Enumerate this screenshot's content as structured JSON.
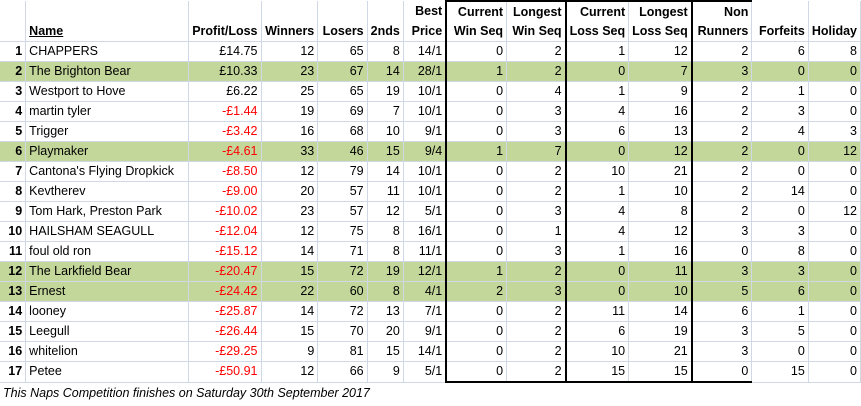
{
  "headers": {
    "row1": [
      "",
      "",
      "",
      "",
      "",
      "",
      "Best",
      "Current",
      "Longest",
      "Current",
      "Longest",
      "Non",
      "",
      ""
    ],
    "row2": [
      "",
      "Name",
      "Profit/Loss",
      "Winners",
      "Losers",
      "2nds",
      "Price",
      "Win Seq",
      "Win Seq",
      "Loss Seq",
      "Loss Seq",
      "Runners",
      "Forfeits",
      "Holiday"
    ]
  },
  "rows": [
    {
      "rank": "1",
      "name": "CHAPPERS",
      "pl": "£14.75",
      "winners": "12",
      "losers": "65",
      "seconds": "8",
      "best": "14/1",
      "cws": "0",
      "lws": "2",
      "cls": "1",
      "lls": "12",
      "nr": "2",
      "forfeits": "6",
      "holiday": "8",
      "highlight": false
    },
    {
      "rank": "2",
      "name": "The Brighton Bear",
      "pl": "£10.33",
      "winners": "23",
      "losers": "67",
      "seconds": "14",
      "best": "28/1",
      "cws": "1",
      "lws": "2",
      "cls": "0",
      "lls": "7",
      "nr": "3",
      "forfeits": "0",
      "holiday": "0",
      "highlight": true
    },
    {
      "rank": "3",
      "name": "Westport to Hove",
      "pl": "£6.22",
      "winners": "25",
      "losers": "65",
      "seconds": "19",
      "best": "10/1",
      "cws": "0",
      "lws": "4",
      "cls": "1",
      "lls": "9",
      "nr": "2",
      "forfeits": "1",
      "holiday": "0",
      "highlight": false
    },
    {
      "rank": "4",
      "name": "martin tyler",
      "pl": "-£1.44",
      "winners": "19",
      "losers": "69",
      "seconds": "7",
      "best": "10/1",
      "cws": "0",
      "lws": "3",
      "cls": "4",
      "lls": "16",
      "nr": "2",
      "forfeits": "3",
      "holiday": "0",
      "highlight": false
    },
    {
      "rank": "5",
      "name": "Trigger",
      "pl": "-£3.42",
      "winners": "16",
      "losers": "68",
      "seconds": "10",
      "best": "9/1",
      "cws": "0",
      "lws": "3",
      "cls": "6",
      "lls": "13",
      "nr": "2",
      "forfeits": "4",
      "holiday": "3",
      "highlight": false
    },
    {
      "rank": "6",
      "name": "Playmaker",
      "pl": "-£4.61",
      "winners": "33",
      "losers": "46",
      "seconds": "15",
      "best": "9/4",
      "cws": "1",
      "lws": "7",
      "cls": "0",
      "lls": "12",
      "nr": "2",
      "forfeits": "0",
      "holiday": "12",
      "highlight": true
    },
    {
      "rank": "7",
      "name": "Cantona's Flying Dropkick",
      "pl": "-£8.50",
      "winners": "12",
      "losers": "79",
      "seconds": "14",
      "best": "10/1",
      "cws": "0",
      "lws": "2",
      "cls": "10",
      "lls": "21",
      "nr": "2",
      "forfeits": "0",
      "holiday": "0",
      "highlight": false
    },
    {
      "rank": "8",
      "name": "Kevtherev",
      "pl": "-£9.00",
      "winners": "20",
      "losers": "57",
      "seconds": "11",
      "best": "10/1",
      "cws": "0",
      "lws": "2",
      "cls": "1",
      "lls": "10",
      "nr": "2",
      "forfeits": "14",
      "holiday": "0",
      "highlight": false
    },
    {
      "rank": "9",
      "name": "Tom Hark, Preston Park",
      "pl": "-£10.02",
      "winners": "23",
      "losers": "57",
      "seconds": "12",
      "best": "5/1",
      "cws": "0",
      "lws": "3",
      "cls": "4",
      "lls": "8",
      "nr": "2",
      "forfeits": "0",
      "holiday": "12",
      "highlight": false
    },
    {
      "rank": "10",
      "name": "HAILSHAM SEAGULL",
      "pl": "-£12.04",
      "winners": "12",
      "losers": "75",
      "seconds": "8",
      "best": "16/1",
      "cws": "0",
      "lws": "1",
      "cls": "4",
      "lls": "12",
      "nr": "3",
      "forfeits": "3",
      "holiday": "0",
      "highlight": false
    },
    {
      "rank": "11",
      "name": "foul old ron",
      "pl": "-£15.12",
      "winners": "14",
      "losers": "71",
      "seconds": "8",
      "best": "11/1",
      "cws": "0",
      "lws": "3",
      "cls": "1",
      "lls": "16",
      "nr": "0",
      "forfeits": "8",
      "holiday": "0",
      "highlight": false
    },
    {
      "rank": "12",
      "name": "The Larkfield Bear",
      "pl": "-£20.47",
      "winners": "15",
      "losers": "72",
      "seconds": "19",
      "best": "12/1",
      "cws": "1",
      "lws": "2",
      "cls": "0",
      "lls": "11",
      "nr": "3",
      "forfeits": "3",
      "holiday": "0",
      "highlight": true
    },
    {
      "rank": "13",
      "name": "Ernest",
      "pl": "-£24.42",
      "winners": "22",
      "losers": "60",
      "seconds": "8",
      "best": "4/1",
      "cws": "2",
      "lws": "3",
      "cls": "0",
      "lls": "10",
      "nr": "5",
      "forfeits": "6",
      "holiday": "0",
      "highlight": true
    },
    {
      "rank": "14",
      "name": "looney",
      "pl": "-£25.87",
      "winners": "14",
      "losers": "72",
      "seconds": "13",
      "best": "7/1",
      "cws": "0",
      "lws": "2",
      "cls": "11",
      "lls": "14",
      "nr": "6",
      "forfeits": "1",
      "holiday": "0",
      "highlight": false
    },
    {
      "rank": "15",
      "name": "Leegull",
      "pl": "-£26.44",
      "winners": "15",
      "losers": "70",
      "seconds": "20",
      "best": "9/1",
      "cws": "0",
      "lws": "2",
      "cls": "6",
      "lls": "19",
      "nr": "3",
      "forfeits": "5",
      "holiday": "0",
      "highlight": false
    },
    {
      "rank": "16",
      "name": "whitelion",
      "pl": "-£29.25",
      "winners": "9",
      "losers": "81",
      "seconds": "15",
      "best": "14/1",
      "cws": "0",
      "lws": "2",
      "cls": "10",
      "lls": "21",
      "nr": "3",
      "forfeits": "0",
      "holiday": "0",
      "highlight": false
    },
    {
      "rank": "17",
      "name": "Petee",
      "pl": "-£50.91",
      "winners": "12",
      "losers": "66",
      "seconds": "9",
      "best": "5/1",
      "cws": "0",
      "lws": "2",
      "cls": "15",
      "lls": "15",
      "nr": "0",
      "forfeits": "15",
      "holiday": "0",
      "highlight": false
    }
  ],
  "footer": "This Naps Competition finishes on Saturday 30th September 2017",
  "colors": {
    "highlight": "#c4d79b",
    "negative": "#ff0000",
    "grid": "#d0d7e5"
  }
}
